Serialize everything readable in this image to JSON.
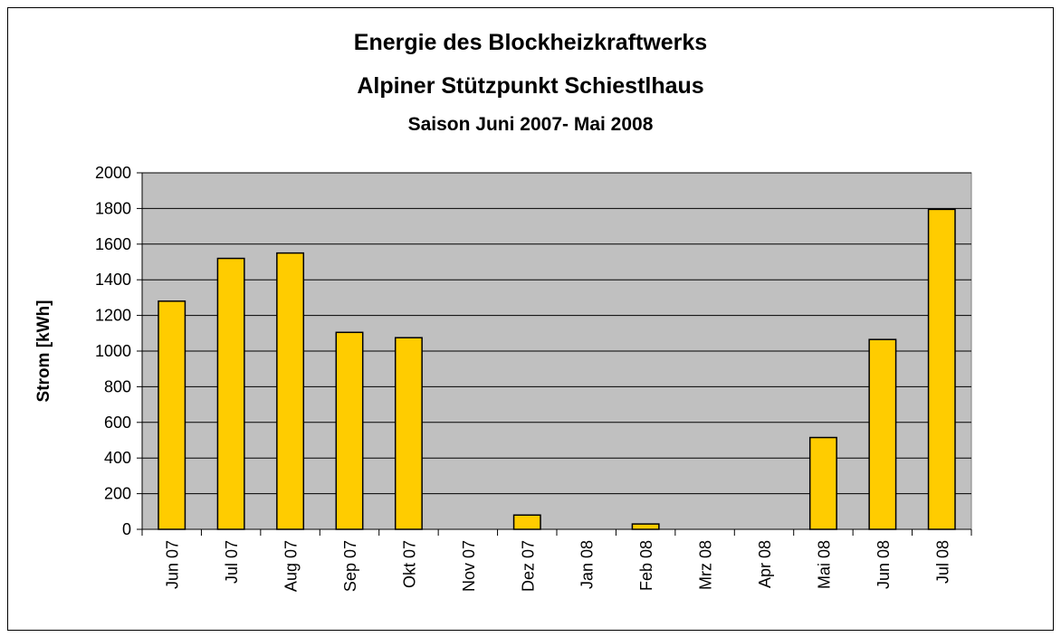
{
  "chart_data": {
    "type": "bar",
    "title": [
      "Energie des Blockheizkraftwerks",
      "Alpiner Stützpunkt Schiestlhaus"
    ],
    "subtitle": "Saison Juni 2007- Mai 2008",
    "y_label": "Strom [kWh]",
    "categories": [
      "Jun 07",
      "Jul 07",
      "Aug 07",
      "Sep 07",
      "Okt 07",
      "Nov 07",
      "Dez 07",
      "Jan 08",
      "Feb 08",
      "Mrz 08",
      "Apr 08",
      "Mai 08",
      "Jun 08",
      "Jul 08"
    ],
    "values": [
      1280,
      1520,
      1550,
      1105,
      1075,
      0,
      80,
      0,
      30,
      0,
      0,
      515,
      1065,
      1795
    ],
    "color": "#ffcc00",
    "ylim": [
      0,
      2000
    ],
    "yticks": [
      0,
      200,
      400,
      600,
      800,
      1000,
      1200,
      1400,
      1600,
      1800,
      2000
    ],
    "grid": true
  }
}
